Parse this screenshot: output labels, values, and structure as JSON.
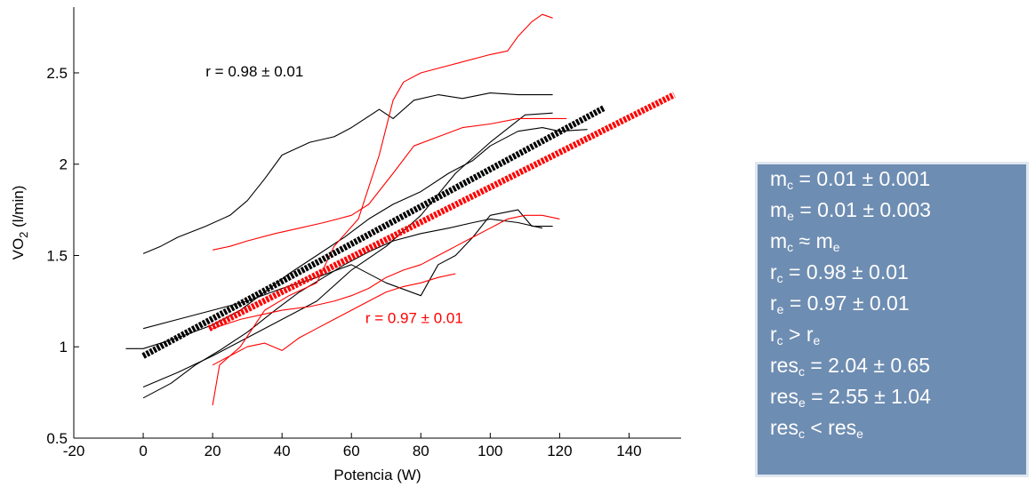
{
  "chart_data": {
    "type": "line",
    "xlabel": "Potencia (W)",
    "ylabel": "VO",
    "ylabel_sub": "2",
    "ylabel_unit": " (l/min)",
    "xlim": [
      -20,
      155
    ],
    "ylim": [
      0.5,
      2.86
    ],
    "x_ticks": [
      -20,
      0,
      20,
      40,
      60,
      80,
      100,
      120,
      140
    ],
    "y_ticks": [
      0.5,
      1,
      1.5,
      2,
      2.5
    ],
    "x_tick_labels": [
      "-20",
      "0",
      "20",
      "40",
      "60",
      "80",
      "100",
      "120",
      "140"
    ],
    "y_tick_labels": [
      "0.5",
      "1",
      "1.5",
      "2",
      "2.5"
    ],
    "grid": false,
    "annotations": [
      {
        "text": "r = 0.98 ± 0.01",
        "x": 18,
        "y": 2.48,
        "color": "#000000"
      },
      {
        "text": "r = 0.97 ± 0.01",
        "x": 64,
        "y": 1.13,
        "color": "#ff0000"
      }
    ],
    "fit_lines": [
      {
        "color": "#000000",
        "x": [
          0,
          133
        ],
        "y": [
          0.95,
          2.31
        ]
      },
      {
        "color": "#ff0000",
        "x": [
          19,
          153
        ],
        "y": [
          1.1,
          2.38
        ]
      }
    ],
    "series": [
      {
        "color": "#000000",
        "x": [
          0,
          5,
          10,
          18,
          25,
          30,
          35,
          40,
          48,
          55,
          60,
          68,
          72,
          78,
          85,
          92,
          100,
          108,
          118
        ],
        "y": [
          1.51,
          1.55,
          1.6,
          1.66,
          1.72,
          1.8,
          1.92,
          2.05,
          2.12,
          2.15,
          2.2,
          2.3,
          2.25,
          2.35,
          2.38,
          2.36,
          2.39,
          2.38,
          2.38
        ]
      },
      {
        "color": "#000000",
        "x": [
          -5,
          0,
          10,
          20,
          28,
          35,
          42,
          50,
          58,
          65,
          72,
          80,
          88,
          95,
          100,
          108,
          115,
          120,
          128
        ],
        "y": [
          0.99,
          0.99,
          1.05,
          1.12,
          1.2,
          1.3,
          1.4,
          1.5,
          1.6,
          1.7,
          1.78,
          1.85,
          1.95,
          2.02,
          2.1,
          2.18,
          2.2,
          2.18,
          2.19
        ]
      },
      {
        "color": "#000000",
        "x": [
          0,
          10,
          20,
          30,
          40,
          50,
          60,
          70,
          80,
          90,
          100,
          110,
          118
        ],
        "y": [
          0.78,
          0.86,
          0.95,
          1.05,
          1.15,
          1.25,
          1.42,
          1.55,
          1.72,
          1.95,
          2.12,
          2.27,
          2.28
        ]
      },
      {
        "color": "#000000",
        "x": [
          0,
          8,
          15,
          22,
          30,
          38,
          45,
          52,
          58,
          65,
          72,
          80,
          88,
          95,
          100,
          108,
          115
        ],
        "y": [
          0.72,
          0.8,
          0.9,
          0.98,
          1.08,
          1.2,
          1.3,
          1.38,
          1.45,
          1.52,
          1.58,
          1.62,
          1.65,
          1.68,
          1.7,
          1.68,
          1.65
        ]
      },
      {
        "color": "#000000",
        "x": [
          0,
          10,
          20,
          30,
          40,
          50,
          60,
          70,
          80,
          85,
          90,
          95,
          100,
          108,
          112,
          118
        ],
        "y": [
          1.1,
          1.15,
          1.2,
          1.25,
          1.32,
          1.38,
          1.45,
          1.35,
          1.28,
          1.45,
          1.5,
          1.6,
          1.72,
          1.75,
          1.66,
          1.66
        ]
      },
      {
        "color": "#ff0000",
        "x": [
          20,
          22,
          28,
          35,
          42,
          50,
          55,
          62,
          68,
          72,
          75,
          80,
          90,
          100,
          105,
          108,
          112,
          115,
          118
        ],
        "y": [
          0.68,
          0.9,
          1.0,
          1.2,
          1.28,
          1.35,
          1.55,
          1.7,
          2.05,
          2.35,
          2.45,
          2.5,
          2.55,
          2.6,
          2.62,
          2.7,
          2.78,
          2.82,
          2.8
        ]
      },
      {
        "color": "#ff0000",
        "x": [
          20,
          25,
          30,
          38,
          45,
          52,
          60,
          65,
          72,
          78,
          85,
          92,
          100,
          108,
          116,
          122
        ],
        "y": [
          1.53,
          1.55,
          1.58,
          1.62,
          1.65,
          1.68,
          1.72,
          1.78,
          1.95,
          2.1,
          2.15,
          2.2,
          2.22,
          2.25,
          2.25,
          2.25
        ]
      },
      {
        "color": "#ff0000",
        "x": [
          20,
          28,
          35,
          40,
          48,
          55,
          60,
          65,
          70,
          75,
          80,
          85,
          90,
          95,
          100,
          105,
          110,
          115,
          120
        ],
        "y": [
          1.1,
          1.15,
          1.18,
          1.2,
          1.22,
          1.25,
          1.28,
          1.32,
          1.38,
          1.42,
          1.45,
          1.5,
          1.55,
          1.6,
          1.65,
          1.7,
          1.72,
          1.72,
          1.7
        ]
      },
      {
        "color": "#ff0000",
        "x": [
          20,
          25,
          30,
          35,
          40,
          45,
          50,
          55,
          60,
          65,
          70,
          75,
          80,
          85,
          90
        ],
        "y": [
          0.9,
          0.95,
          1.0,
          1.02,
          0.98,
          1.05,
          1.1,
          1.15,
          1.2,
          1.25,
          1.3,
          1.33,
          1.35,
          1.38,
          1.4
        ]
      }
    ]
  },
  "stats_box": {
    "lines": [
      {
        "pre": "m",
        "sub": "c",
        "rest": " = 0.01 ± 0.001"
      },
      {
        "pre": "m",
        "sub": "e",
        "rest": " = 0.01 ± 0.003"
      },
      {
        "pre": "m",
        "sub": "c",
        "rest": " ≈ m",
        "sub2": "e"
      },
      {
        "pre": "r",
        "sub": "c",
        "rest": " = 0.98 ± 0.01"
      },
      {
        "pre": "r",
        "sub": "e",
        "rest": " = 0.97 ± 0.01"
      },
      {
        "pre": "r",
        "sub": "c",
        "rest": " > r",
        "sub2": "e"
      },
      {
        "pre": "res",
        "sub": "c",
        "rest": " = 2.04 ± 0.65"
      },
      {
        "pre": "res",
        "sub": "e",
        "rest": " = 2.55 ± 1.04"
      },
      {
        "pre": "res",
        "sub": "c",
        "rest": " < res",
        "sub2": "e"
      }
    ]
  }
}
